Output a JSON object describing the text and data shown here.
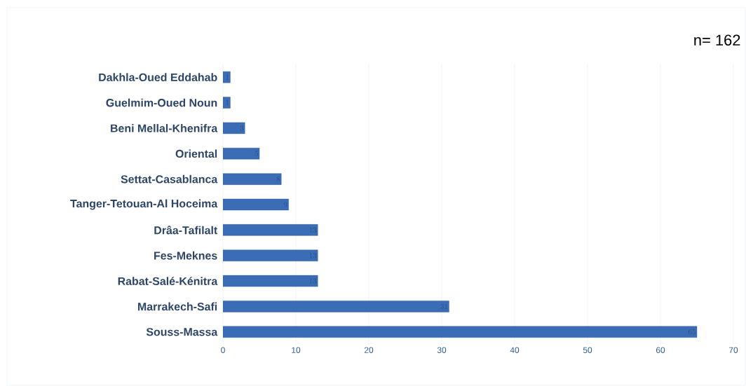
{
  "chart_data": {
    "type": "bar",
    "orientation": "horizontal",
    "categories": [
      "Dakhla-Oued Eddahab",
      "Guelmim-Oued Noun",
      "Beni Mellal-Khenifra",
      "Oriental",
      "Settat-Casablanca",
      "Tanger-Tetouan-Al Hoceima",
      "Drâa-Tafilalt",
      "Fes-Meknes",
      "Rabat-Salé-Kénitra",
      "Marrakech-Safi",
      "Souss-Massa"
    ],
    "values": [
      1,
      1,
      3,
      5,
      8,
      9,
      13,
      13,
      13,
      31,
      65
    ],
    "color": "#3a6db5",
    "xlim": [
      0,
      70
    ],
    "xticks": [
      0,
      10,
      20,
      30,
      40,
      50,
      60,
      70
    ],
    "grid": "x",
    "data_labels": true,
    "annotations": [
      "n= 162"
    ]
  }
}
